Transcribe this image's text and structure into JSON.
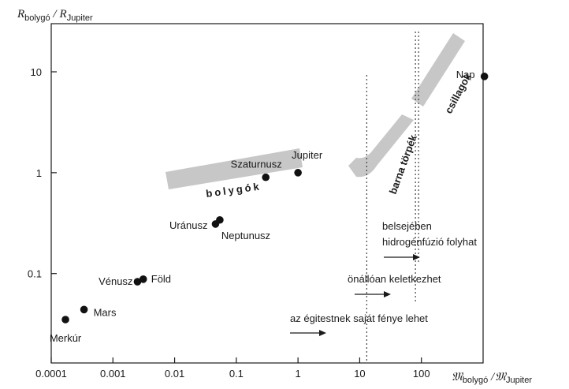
{
  "chart_data": {
    "type": "scatter",
    "title": "",
    "xlabel": {
      "main": "𝔐",
      "sub": "bolygó",
      "sep": " /",
      "main2": "𝔐",
      "sub2": "Jupiter"
    },
    "ylabel": {
      "main": "R",
      "sub": "bolygó",
      "sep": " /",
      "main2": "R",
      "sub2": "Jupiter"
    },
    "x_scale": "log",
    "y_scale": "log",
    "xlim": [
      0.0001,
      1000
    ],
    "ylim": [
      0.013,
      30
    ],
    "x_ticks": [
      {
        "value": 0.0001,
        "label": "0.0001"
      },
      {
        "value": 0.001,
        "label": "0.001"
      },
      {
        "value": 0.01,
        "label": "0.01"
      },
      {
        "value": 0.1,
        "label": "0.1"
      },
      {
        "value": 1,
        "label": "1"
      },
      {
        "value": 10,
        "label": "10"
      },
      {
        "value": 100,
        "label": "100"
      }
    ],
    "y_ticks": [
      {
        "value": 0.1,
        "label": "0.1"
      },
      {
        "value": 1,
        "label": "1"
      },
      {
        "value": 10,
        "label": "10"
      }
    ],
    "grid": false,
    "points": [
      {
        "name": "Merkúr",
        "x": 0.00017,
        "y": 0.035
      },
      {
        "name": "Vénusz",
        "x": 0.0025,
        "y": 0.083
      },
      {
        "name": "Föld",
        "x": 0.0031,
        "y": 0.088
      },
      {
        "name": "Mars",
        "x": 0.00034,
        "y": 0.044
      },
      {
        "name": "Uránusz",
        "x": 0.046,
        "y": 0.31
      },
      {
        "name": "Neptunusz",
        "x": 0.054,
        "y": 0.34
      },
      {
        "name": "Szaturnusz",
        "x": 0.3,
        "y": 0.9
      },
      {
        "name": "Jupiter",
        "x": 1,
        "y": 1
      },
      {
        "name": "Nap",
        "x": 1050,
        "y": 9
      }
    ],
    "vertical_lines": [
      {
        "x": 13,
        "style": "dotted"
      },
      {
        "x": 80,
        "style": "dotted"
      },
      {
        "x": 90,
        "style": "dotted"
      }
    ],
    "regions": [
      {
        "name": "bolygók"
      },
      {
        "name": "barna törpék"
      },
      {
        "name": "csillagok"
      }
    ],
    "annotations": [
      {
        "text": "az égitestnek saját fénye lehet"
      },
      {
        "text": "önállóan keletkezhet"
      },
      {
        "text": "belsejében"
      },
      {
        "text": "hidrogénfúzió folyhat"
      }
    ]
  }
}
